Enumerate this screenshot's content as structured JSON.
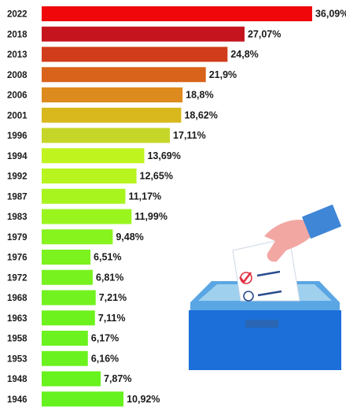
{
  "chart_data": {
    "type": "bar",
    "orientation": "horizontal",
    "categories": [
      "2022",
      "2018",
      "2013",
      "2008",
      "2006",
      "2001",
      "1996",
      "1994",
      "1992",
      "1987",
      "1983",
      "1979",
      "1976",
      "1972",
      "1968",
      "1963",
      "1958",
      "1953",
      "1948",
      "1946"
    ],
    "values": [
      36.09,
      27.07,
      24.8,
      21.9,
      18.8,
      18.62,
      17.11,
      13.69,
      12.65,
      11.17,
      11.99,
      9.48,
      6.51,
      6.81,
      7.21,
      7.11,
      6.17,
      6.16,
      7.87,
      10.92
    ],
    "value_labels": [
      "36,09%",
      "27,07%",
      "24,8%",
      "21,9%",
      "18,8%",
      "18,62%",
      "17,11%",
      "13,69%",
      "12,65%",
      "11,17%",
      "11,99%",
      "9,48%",
      "6,51%",
      "6,81%",
      "7,21%",
      "7,11%",
      "6,17%",
      "6,16%",
      "7,87%",
      "10,92%"
    ],
    "bar_colors": [
      "#f0070a",
      "#c5141e",
      "#d13c1a",
      "#d9631a",
      "#dd8a1e",
      "#d9b81e",
      "#c6d629",
      "#bff41f",
      "#b8f41e",
      "#a8f41e",
      "#9af41e",
      "#88f41e",
      "#7cf21e",
      "#77f21e",
      "#72f21e",
      "#6ef21e",
      "#6cf21e",
      "#6af21e",
      "#68f21e",
      "#66f21e"
    ],
    "title": "",
    "xlabel": "",
    "ylabel": "",
    "grid": false
  },
  "illustration": {
    "icon": "ballot-box-icon",
    "colors": {
      "box_top": "#9fd0ee",
      "box_front": "#1c6fd8",
      "box_edge": "#5aa6e4",
      "slot": "#2a66b4",
      "ballot_paper": "#ffffff",
      "ballot_check": "#e02f41",
      "ballot_lines": "#2a4c8e",
      "sleeve": "#3f86d6",
      "skin": "#f2a7a3"
    }
  }
}
